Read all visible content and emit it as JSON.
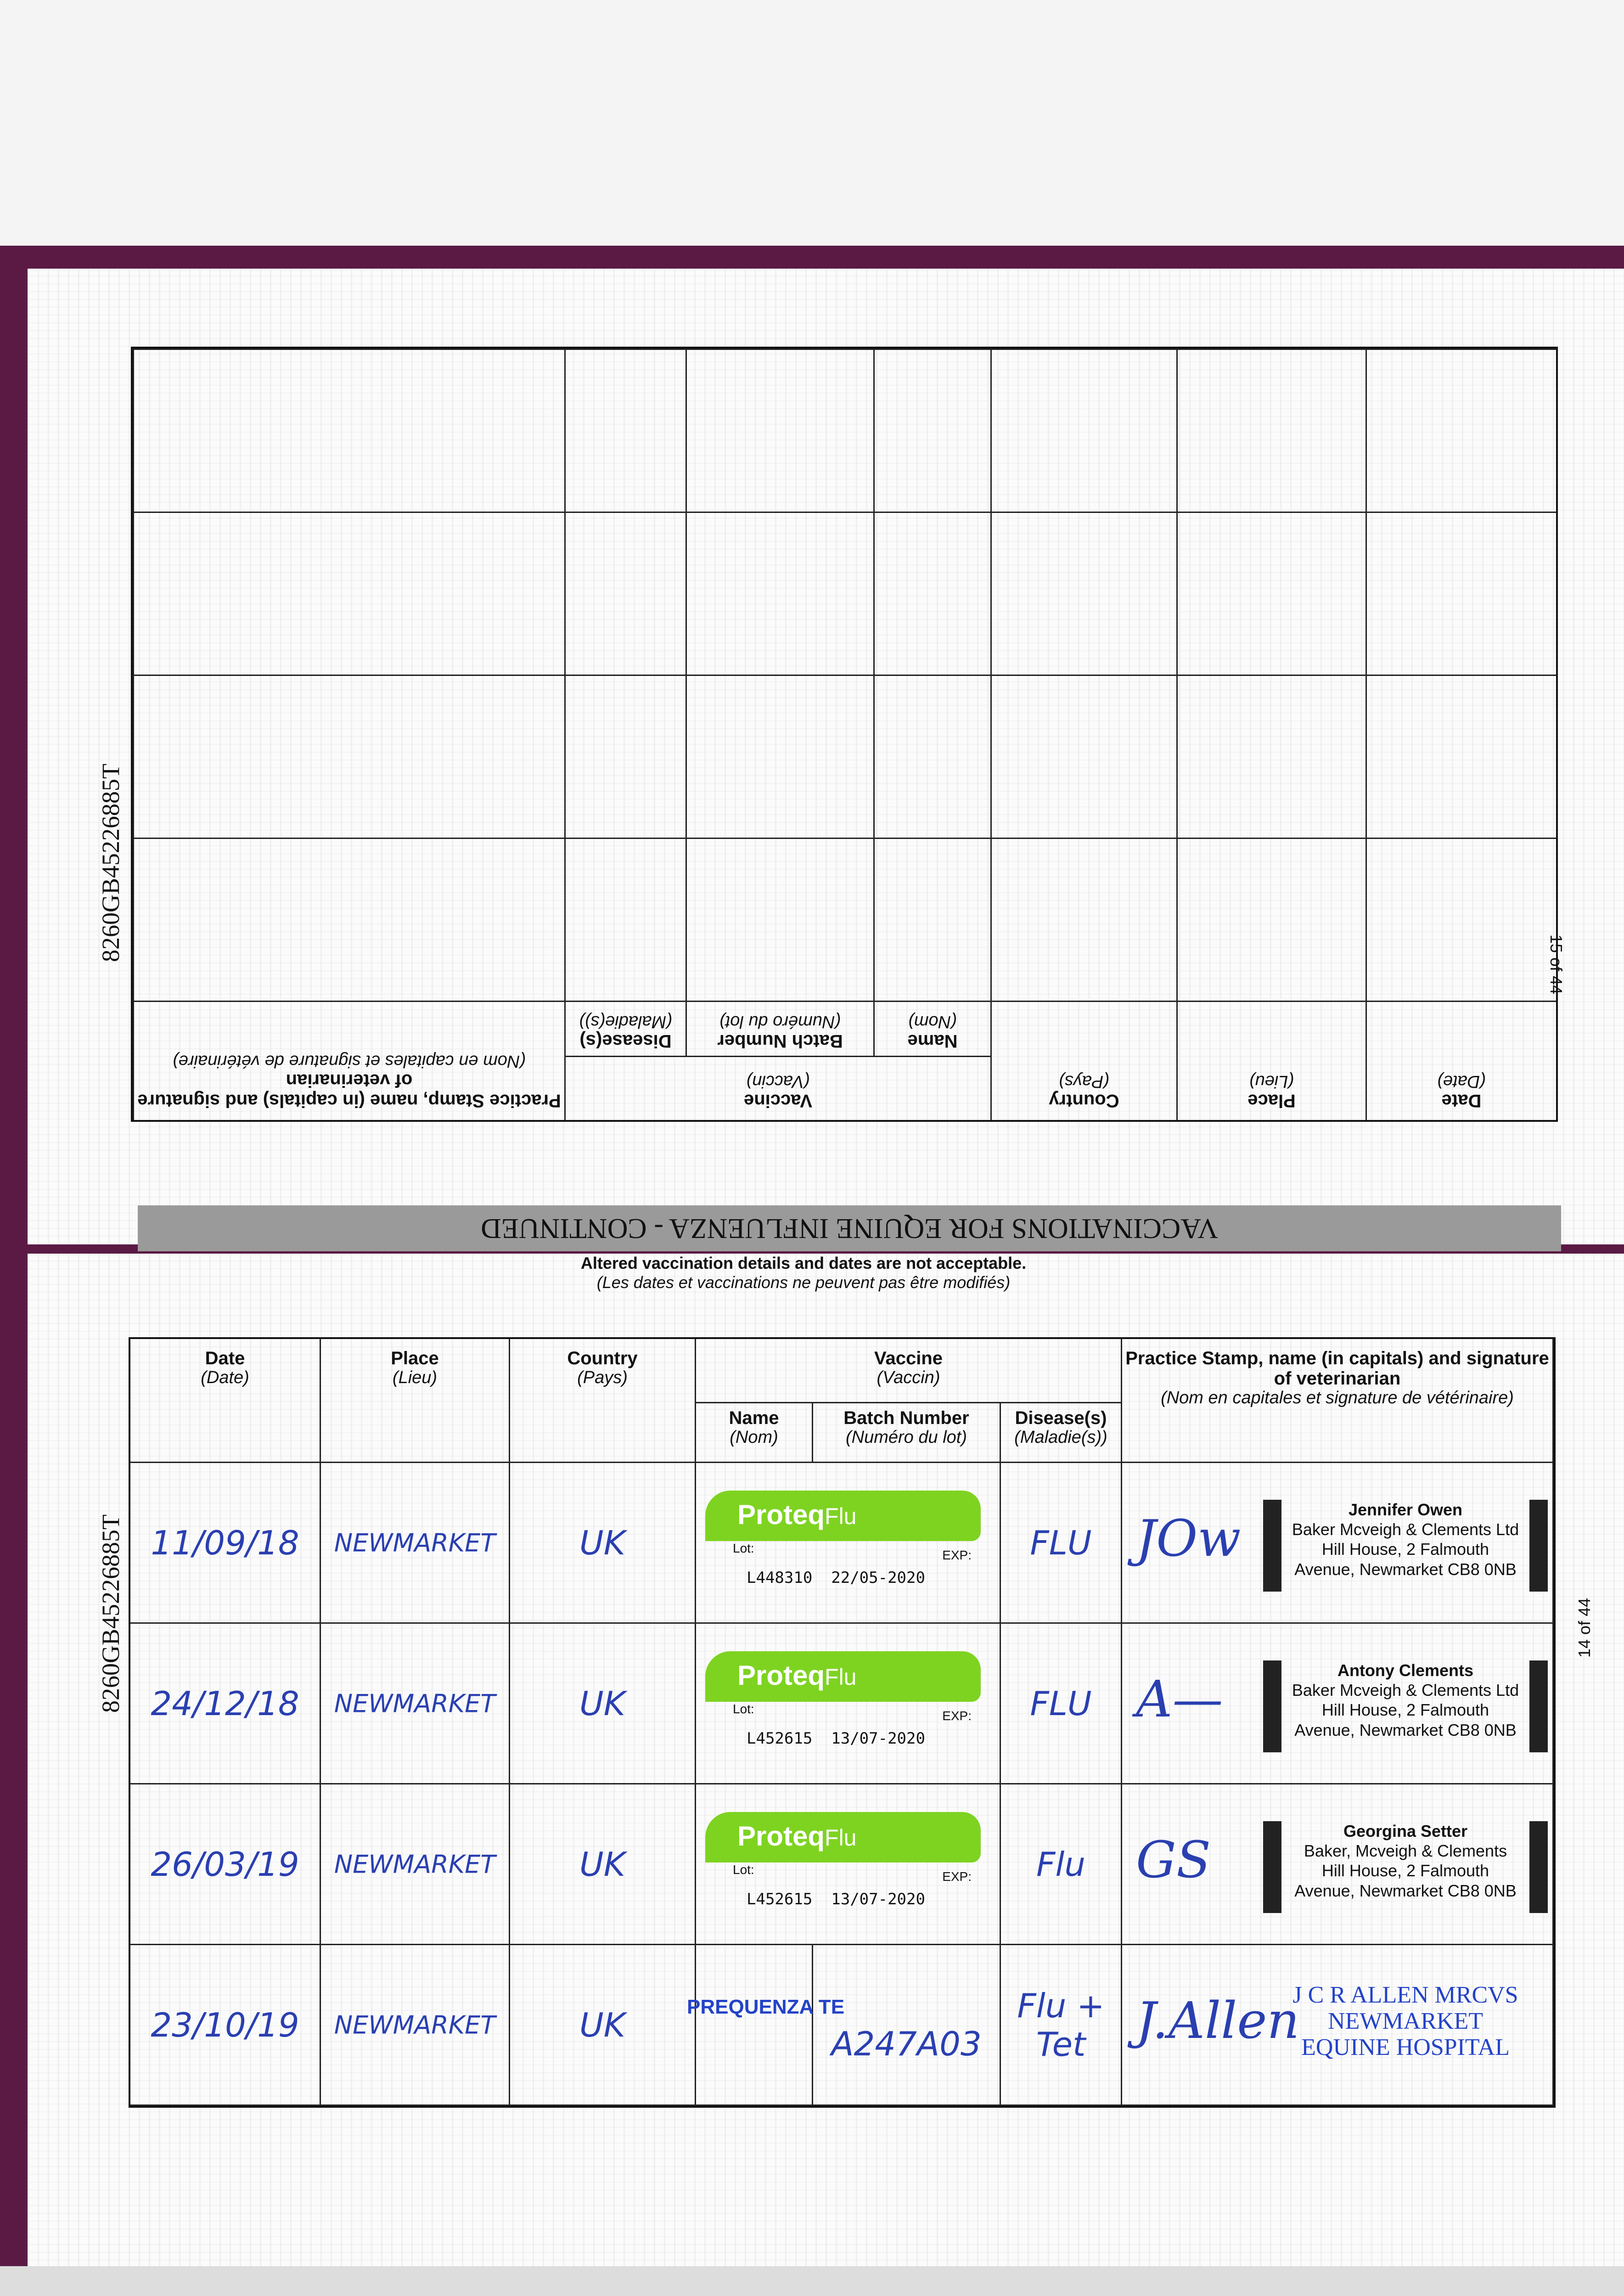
{
  "horse_id": "8260GB45226885T",
  "top_page": {
    "page_number": "15 of 44",
    "upside_down": true,
    "rows_filled": 0
  },
  "section_title": "VACCINATIONS FOR EQUINE INFLUENZA - CONTINUED",
  "notice": {
    "en": "Altered vaccination details and dates are not acceptable.",
    "fr": "(Les dates et vaccinations ne peuvent pas être modifiés)"
  },
  "headers": {
    "date": {
      "en": "Date",
      "fr": "(Date)"
    },
    "place": {
      "en": "Place",
      "fr": "(Lieu)"
    },
    "country": {
      "en": "Country",
      "fr": "(Pays)"
    },
    "vaccine": {
      "en": "Vaccine",
      "fr": "(Vaccin)"
    },
    "name": {
      "en": "Name",
      "fr": "(Nom)"
    },
    "batch": {
      "en": "Batch Number",
      "fr": "(Numéro du lot)"
    },
    "disease": {
      "en": "Disease(s)",
      "fr": "(Maladie(s))"
    },
    "stamp": {
      "en": "Practice Stamp, name (in capitals) and signature of veterinarian",
      "fr": "(Nom en capitales et signature de vétérinaire)"
    }
  },
  "bottom_page": {
    "page_number": "14 of 44"
  },
  "rows": [
    {
      "date": "11/09/18",
      "place": "NEWMARKET",
      "country": "UK",
      "sticker": {
        "brand": "Proteq",
        "brand2": "Flu",
        "lot_label": "Lot:",
        "exp_label": "EXP:",
        "lot": "L448310",
        "exp": "22/05-2020"
      },
      "disease": "FLU",
      "signature": "JOw",
      "stamp": [
        "Jennifer Owen",
        "Baker Mcveigh & Clements Ltd",
        "Hill House, 2 Falmouth",
        "Avenue, Newmarket CB8 0NB"
      ]
    },
    {
      "date": "24/12/18",
      "place": "NEWMARKET",
      "country": "UK",
      "sticker": {
        "brand": "Proteq",
        "brand2": "Flu",
        "lot_label": "Lot:",
        "exp_label": "EXP:",
        "lot": "L452615",
        "exp": "13/07-2020"
      },
      "disease": "FLU",
      "signature": "A—",
      "stamp": [
        "Antony Clements",
        "Baker Mcveigh & Clements Ltd",
        "Hill House, 2 Falmouth",
        "Avenue, Newmarket CB8 0NB"
      ]
    },
    {
      "date": "26/03/19",
      "place": "NEWMARKET",
      "country": "UK",
      "sticker": {
        "brand": "Proteq",
        "brand2": "Flu",
        "lot_label": "Lot:",
        "exp_label": "EXP:",
        "lot": "L452615",
        "exp": "13/07-2020"
      },
      "disease": "Flu",
      "signature": "GS",
      "stamp": [
        "Georgina Setter",
        "Baker, Mcveigh & Clements",
        "Hill House, 2 Falmouth",
        "Avenue, Newmarket CB8 0NB"
      ]
    },
    {
      "date": "23/10/19",
      "place": "NEWMARKET",
      "country": "UK",
      "name": "PREQUENZA TE",
      "batch": "A247A03",
      "disease": "Flu + Tet",
      "signature": "J.Allen",
      "stamp": [
        "J C R ALLEN MRCVS",
        "NEWMARKET",
        "EQUINE HOSPITAL"
      ]
    }
  ],
  "colors": {
    "ink": "#2a3fb0",
    "sticker_green": "#7ed321",
    "cover": "#5a1a44"
  }
}
